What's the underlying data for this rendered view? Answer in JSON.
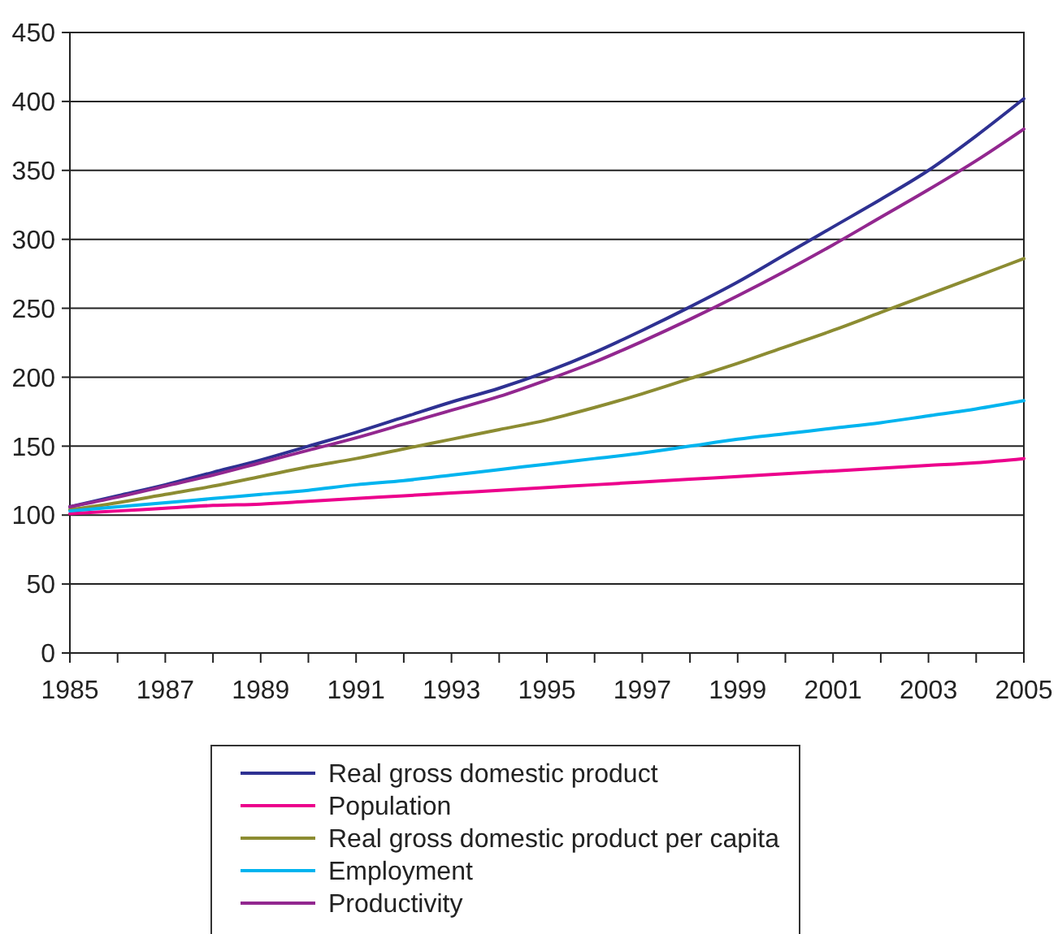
{
  "chart_data": {
    "type": "line",
    "x": [
      1985,
      1986,
      1987,
      1988,
      1989,
      1990,
      1991,
      1992,
      1993,
      1994,
      1995,
      1996,
      1997,
      1998,
      1999,
      2000,
      2001,
      2002,
      2003,
      2004,
      2005
    ],
    "xlim": [
      1985,
      2005
    ],
    "xticks": [
      1985,
      {
        "value": 1986,
        "label": null
      },
      1987,
      {
        "value": 1988,
        "label": null
      },
      1989,
      {
        "value": 1990,
        "label": null
      },
      1991,
      {
        "value": 1992,
        "label": null
      },
      1993,
      {
        "value": 1994,
        "label": null
      },
      1995,
      {
        "value": 1996,
        "label": null
      },
      1997,
      {
        "value": 1998,
        "label": null
      },
      1999,
      {
        "value": 2000,
        "label": null
      },
      2001,
      {
        "value": 2002,
        "label": null
      },
      2003,
      {
        "value": 2004,
        "label": null
      },
      2005
    ],
    "ylim": [
      0,
      450
    ],
    "yticks": [
      0,
      50,
      100,
      150,
      200,
      250,
      300,
      350,
      400,
      450
    ],
    "grid": "y",
    "legend": "bottom",
    "series": [
      {
        "name": "Real gross domestic product",
        "color": "#2e3192",
        "values": [
          106,
          114,
          122,
          131,
          140,
          150,
          160,
          171,
          182,
          192,
          204,
          218,
          234,
          251,
          269,
          289,
          309,
          329,
          350,
          375,
          402
        ]
      },
      {
        "name": "Population",
        "color": "#ec008c",
        "values": [
          101,
          103,
          105,
          107,
          108,
          110,
          112,
          114,
          116,
          118,
          120,
          122,
          124,
          126,
          128,
          130,
          132,
          134,
          136,
          138,
          141
        ]
      },
      {
        "name": "Real gross domestic product per capita",
        "color": "#8c8c32",
        "values": [
          104,
          109,
          115,
          121,
          128,
          135,
          141,
          148,
          155,
          162,
          169,
          178,
          188,
          199,
          210,
          222,
          234,
          247,
          260,
          273,
          286
        ]
      },
      {
        "name": "Employment",
        "color": "#00b4ef",
        "values": [
          103,
          106,
          109,
          112,
          115,
          118,
          122,
          125,
          129,
          133,
          137,
          141,
          145,
          150,
          155,
          159,
          163,
          167,
          172,
          177,
          183
        ]
      },
      {
        "name": "Productivity",
        "color": "#92278f",
        "values": [
          106,
          113,
          121,
          129,
          138,
          147,
          156,
          166,
          176,
          186,
          198,
          211,
          226,
          242,
          259,
          277,
          296,
          316,
          336,
          357,
          380
        ]
      }
    ]
  }
}
